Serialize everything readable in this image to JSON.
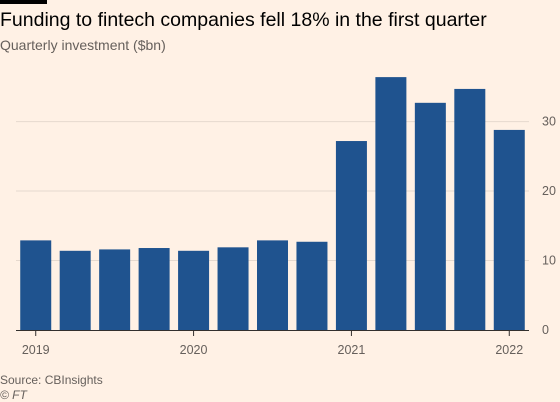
{
  "header": {
    "title": "Funding to fintech companies fell 18% in the first quarter",
    "subtitle": "Quarterly investment ($bn)"
  },
  "footer": {
    "source": "Source: CBInsights",
    "credit": "© FT"
  },
  "colors": {
    "background": "#fff1e5",
    "bar": "#1f538f",
    "grid": "#e6d9ce",
    "axis": "#33302e",
    "text": "#66605c",
    "accent_bar": "#000000"
  },
  "chart_data": {
    "type": "bar",
    "categories": [
      "2019 Q1",
      "2019 Q2",
      "2019 Q3",
      "2019 Q4",
      "2020 Q1",
      "2020 Q2",
      "2020 Q3",
      "2020 Q4",
      "2021 Q1",
      "2021 Q2",
      "2021 Q3",
      "2021 Q4",
      "2022 Q1"
    ],
    "values": [
      12.9,
      11.4,
      11.6,
      11.8,
      11.4,
      11.9,
      12.9,
      12.7,
      27.2,
      36.4,
      32.7,
      34.7,
      28.8
    ],
    "x_tick_labels": [
      {
        "label": "2019",
        "category_index": 0
      },
      {
        "label": "2020",
        "category_index": 4
      },
      {
        "label": "2021",
        "category_index": 8
      },
      {
        "label": "2022",
        "category_index": 12
      }
    ],
    "y_ticks": [
      0,
      10,
      20,
      30
    ],
    "ylim": [
      0,
      38
    ],
    "y_axis_side": "right",
    "grid": true
  }
}
